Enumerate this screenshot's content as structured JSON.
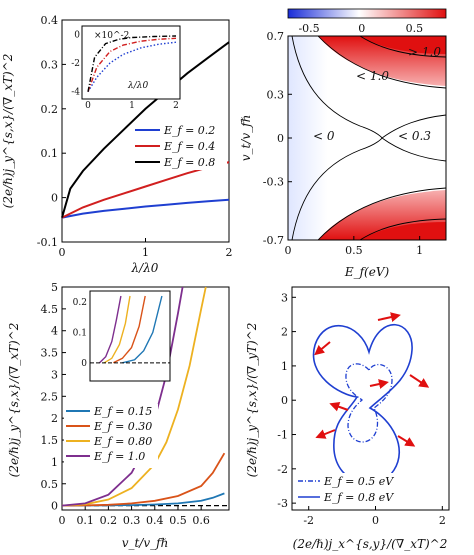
{
  "chart_data": [
    {
      "type": "line",
      "panel": "a",
      "xlabel": "λ/λ0",
      "ylabel": "(2e/ℏ)j_y^{s,x}/(∇_xT)^2",
      "xlim": [
        0,
        2
      ],
      "ylim": [
        -0.1,
        0.4
      ],
      "xticks": [
        "0",
        "1",
        "2"
      ],
      "yticks": [
        "-0.1",
        "0",
        "0.1",
        "0.2",
        "0.3",
        "0.4"
      ],
      "legend_position": "lower-right",
      "series": [
        {
          "name": "E_f = 0.2",
          "color": "#1f3fd1",
          "x": [
            0,
            0.25,
            0.5,
            0.75,
            1.0,
            1.25,
            1.5,
            1.75,
            2.0
          ],
          "y": [
            -0.045,
            -0.036,
            -0.03,
            -0.025,
            -0.02,
            -0.016,
            -0.012,
            -0.008,
            -0.005
          ]
        },
        {
          "name": "E_f = 0.4",
          "color": "#d11f1f",
          "x": [
            0,
            0.25,
            0.5,
            0.75,
            1.0,
            1.25,
            1.5,
            1.75,
            2.0
          ],
          "y": [
            -0.045,
            -0.022,
            -0.005,
            0.01,
            0.025,
            0.04,
            0.055,
            0.068,
            0.08
          ]
        },
        {
          "name": "E_f = 0.8",
          "color": "#000000",
          "x": [
            0,
            0.1,
            0.25,
            0.5,
            0.75,
            1.0,
            1.25,
            1.5,
            1.75,
            2.0
          ],
          "y": [
            -0.045,
            0.02,
            0.06,
            0.11,
            0.155,
            0.2,
            0.24,
            0.28,
            0.315,
            0.35
          ]
        }
      ],
      "inset": {
        "xlabel": "λ/λ0",
        "multiplier": "×10^-2",
        "xlim": [
          0,
          2
        ],
        "ylim": [
          -4.3,
          0.3
        ],
        "xticks": [
          "0",
          "1",
          "2"
        ],
        "yticks": [
          "-4",
          "-2",
          "0"
        ],
        "series": [
          {
            "color": "#1f3fd1",
            "style": "dotted",
            "x": [
              0,
              0.2,
              0.5,
              0.8,
              1.2,
              1.6,
              2.0
            ],
            "y": [
              -4.0,
              -3.0,
              -2.0,
              -1.4,
              -0.95,
              -0.7,
              -0.55
            ]
          },
          {
            "color": "#d11f1f",
            "style": "dashdot",
            "x": [
              0,
              0.2,
              0.5,
              0.8,
              1.2,
              1.6,
              2.0
            ],
            "y": [
              -4.0,
              -2.3,
              -1.2,
              -0.75,
              -0.48,
              -0.35,
              -0.28
            ]
          },
          {
            "color": "#000000",
            "style": "dashdot",
            "x": [
              0,
              0.15,
              0.4,
              0.7,
              1.0,
              1.5,
              2.0
            ],
            "y": [
              -4.0,
              -1.6,
              -0.65,
              -0.35,
              -0.22,
              -0.15,
              -0.12
            ]
          }
        ]
      }
    },
    {
      "type": "heatmap",
      "panel": "b",
      "xlabel": "E_f(eV)",
      "ylabel": "v_t/v_fℏ",
      "xlim": [
        0,
        1.2
      ],
      "ylim": [
        -0.7,
        0.7
      ],
      "xticks": [
        "0",
        "0.5",
        "1"
      ],
      "yticks": [
        "0.7",
        "0.3",
        "0",
        "-0.3",
        "-0.7"
      ],
      "colorbar": {
        "ticks": [
          "-0.5",
          "0",
          "0.5"
        ],
        "range": [
          -0.7,
          0.8
        ],
        "low_color": "#2233dd",
        "mid_color": "#ffffff",
        "high_color": "#e01010"
      },
      "annotations": [
        "> 1.0",
        "< 1.0",
        "< 0",
        "< 0.3"
      ]
    },
    {
      "type": "line",
      "panel": "c",
      "xlabel": "v_t/v_fℏ",
      "ylabel": "(2e/ℏ)j_y^{s,x}/(∇_xT)^2",
      "xlim": [
        0,
        0.72
      ],
      "ylim": [
        -0.1,
        5
      ],
      "xticks": [
        "0",
        "0.1",
        "0.2",
        "0.3",
        "0.4",
        "0.5",
        "0.6"
      ],
      "yticks": [
        "0",
        "0.5",
        "1",
        "1.5",
        "2",
        "2.5",
        "3",
        "3.5",
        "4",
        "4.5",
        "5"
      ],
      "legend_position": "center-left",
      "series": [
        {
          "name": "E_f = 0.15",
          "color": "#1f77b4",
          "x": [
            0,
            0.1,
            0.2,
            0.3,
            0.4,
            0.5,
            0.6,
            0.65,
            0.7
          ],
          "y": [
            0,
            0.002,
            0.006,
            0.012,
            0.025,
            0.05,
            0.11,
            0.18,
            0.28
          ]
        },
        {
          "name": "E_f = 0.30",
          "color": "#d95319",
          "x": [
            0,
            0.1,
            0.2,
            0.3,
            0.4,
            0.5,
            0.6,
            0.65,
            0.7
          ],
          "y": [
            0,
            0.006,
            0.02,
            0.05,
            0.11,
            0.22,
            0.45,
            0.75,
            1.2
          ]
        },
        {
          "name": "E_f = 0.80",
          "color": "#edb120",
          "x": [
            0,
            0.1,
            0.2,
            0.3,
            0.4,
            0.45,
            0.5,
            0.55,
            0.6,
            0.62
          ],
          "y": [
            0,
            0.03,
            0.14,
            0.4,
            0.95,
            1.45,
            2.2,
            3.2,
            4.5,
            5.0
          ]
        },
        {
          "name": "E_f = 1.0",
          "color": "#7e2f8e",
          "x": [
            0,
            0.1,
            0.2,
            0.3,
            0.35,
            0.4,
            0.45,
            0.5,
            0.52
          ],
          "y": [
            0,
            0.05,
            0.25,
            0.75,
            1.25,
            2.0,
            3.0,
            4.4,
            5.0
          ]
        }
      ],
      "reference_line": {
        "y": 0,
        "style": "dashed",
        "color": "#000000"
      },
      "inset": {
        "xlim": [
          0,
          0.5
        ],
        "ylim": [
          -0.05,
          0.22
        ],
        "yticks": [
          "0.2",
          "0.1",
          "0"
        ],
        "series": [
          {
            "color": "#1f77b4",
            "x": [
              0.2,
              0.28,
              0.34,
              0.4,
              0.46
            ],
            "y": [
              0.0,
              0.01,
              0.04,
              0.1,
              0.22
            ]
          },
          {
            "color": "#d95319",
            "x": [
              0.14,
              0.2,
              0.26,
              0.31,
              0.35
            ],
            "y": [
              0.0,
              0.015,
              0.05,
              0.12,
              0.22
            ]
          },
          {
            "color": "#edb120",
            "x": [
              0.08,
              0.13,
              0.18,
              0.22,
              0.25
            ],
            "y": [
              0.0,
              0.015,
              0.06,
              0.13,
              0.22
            ]
          },
          {
            "color": "#7e2f8e",
            "x": [
              0.05,
              0.09,
              0.13,
              0.16,
              0.19
            ],
            "y": [
              0.0,
              0.02,
              0.07,
              0.14,
              0.22
            ]
          }
        ]
      }
    },
    {
      "type": "scatter",
      "panel": "d",
      "xlabel": "(2e/ℏ)j_x^{s,y}/(∇_xT)^2",
      "ylabel": "(2e/ℏ)j_y^{s,x}/(∇_yT)^2",
      "xlim": [
        -2.5,
        2.2
      ],
      "ylim": [
        -3.2,
        3.3
      ],
      "xticks": [
        "-2",
        "0",
        "2"
      ],
      "yticks": [
        "3",
        "2",
        "1",
        "0",
        "-1",
        "-2",
        "-3"
      ],
      "legend_position": "bottom",
      "series": [
        {
          "name": "E_f = 0.5 eV",
          "color": "#1f3fd1",
          "style": "dashdot",
          "shape": "two-lobe",
          "scale": 1.0
        },
        {
          "name": "E_f = 0.8 eV",
          "color": "#1f3fd1",
          "style": "solid",
          "shape": "two-lobe",
          "scale": 2.1
        }
      ],
      "arrows_color": "#e01010"
    }
  ]
}
